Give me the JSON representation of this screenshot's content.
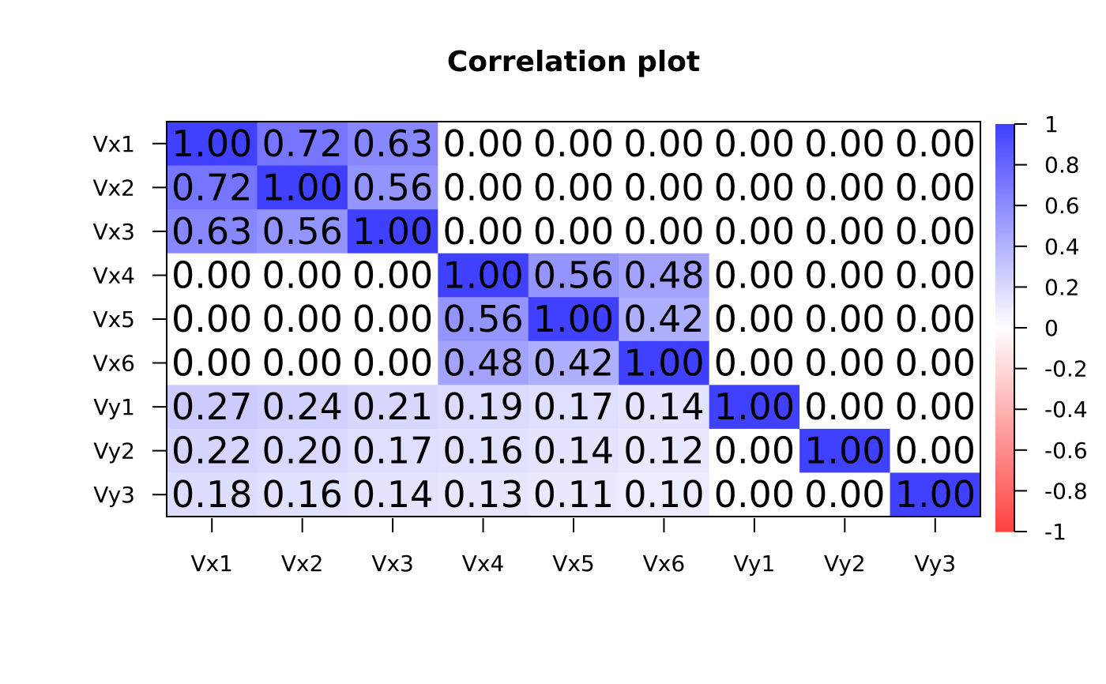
{
  "chart_data": {
    "type": "heatmap",
    "title": "Correlation plot",
    "xlabel": "",
    "ylabel": "",
    "row_labels": [
      "Vx1",
      "Vx2",
      "Vx3",
      "Vx4",
      "Vx5",
      "Vx6",
      "Vy1",
      "Vy2",
      "Vy3"
    ],
    "col_labels": [
      "Vx1",
      "Vx2",
      "Vx3",
      "Vx4",
      "Vx5",
      "Vx6",
      "Vy1",
      "Vy2",
      "Vy3"
    ],
    "values": [
      [
        1.0,
        0.72,
        0.63,
        0.0,
        0.0,
        0.0,
        0.0,
        0.0,
        0.0
      ],
      [
        0.72,
        1.0,
        0.56,
        0.0,
        0.0,
        0.0,
        0.0,
        0.0,
        0.0
      ],
      [
        0.63,
        0.56,
        1.0,
        0.0,
        0.0,
        0.0,
        0.0,
        0.0,
        0.0
      ],
      [
        0.0,
        0.0,
        0.0,
        1.0,
        0.56,
        0.48,
        0.0,
        0.0,
        0.0
      ],
      [
        0.0,
        0.0,
        0.0,
        0.56,
        1.0,
        0.42,
        0.0,
        0.0,
        0.0
      ],
      [
        0.0,
        0.0,
        0.0,
        0.48,
        0.42,
        1.0,
        0.0,
        0.0,
        0.0
      ],
      [
        0.27,
        0.24,
        0.21,
        0.19,
        0.17,
        0.14,
        1.0,
        0.0,
        0.0
      ],
      [
        0.22,
        0.2,
        0.17,
        0.16,
        0.14,
        0.12,
        0.0,
        1.0,
        0.0
      ],
      [
        0.18,
        0.16,
        0.14,
        0.13,
        0.11,
        0.1,
        0.0,
        0.0,
        1.0
      ]
    ],
    "value_format_decimals": 2,
    "color_scale": {
      "min": -1,
      "max": 1,
      "low_color": "#FF4040",
      "mid_color": "#FFFFFF",
      "high_color": "#4040FF",
      "tick_labels": [
        "1",
        "0.8",
        "0.6",
        "0.4",
        "0.2",
        "0",
        "-0.2",
        "-0.4",
        "-0.6",
        "-0.8",
        "-1"
      ]
    },
    "legend_position": "right",
    "grid": false
  }
}
